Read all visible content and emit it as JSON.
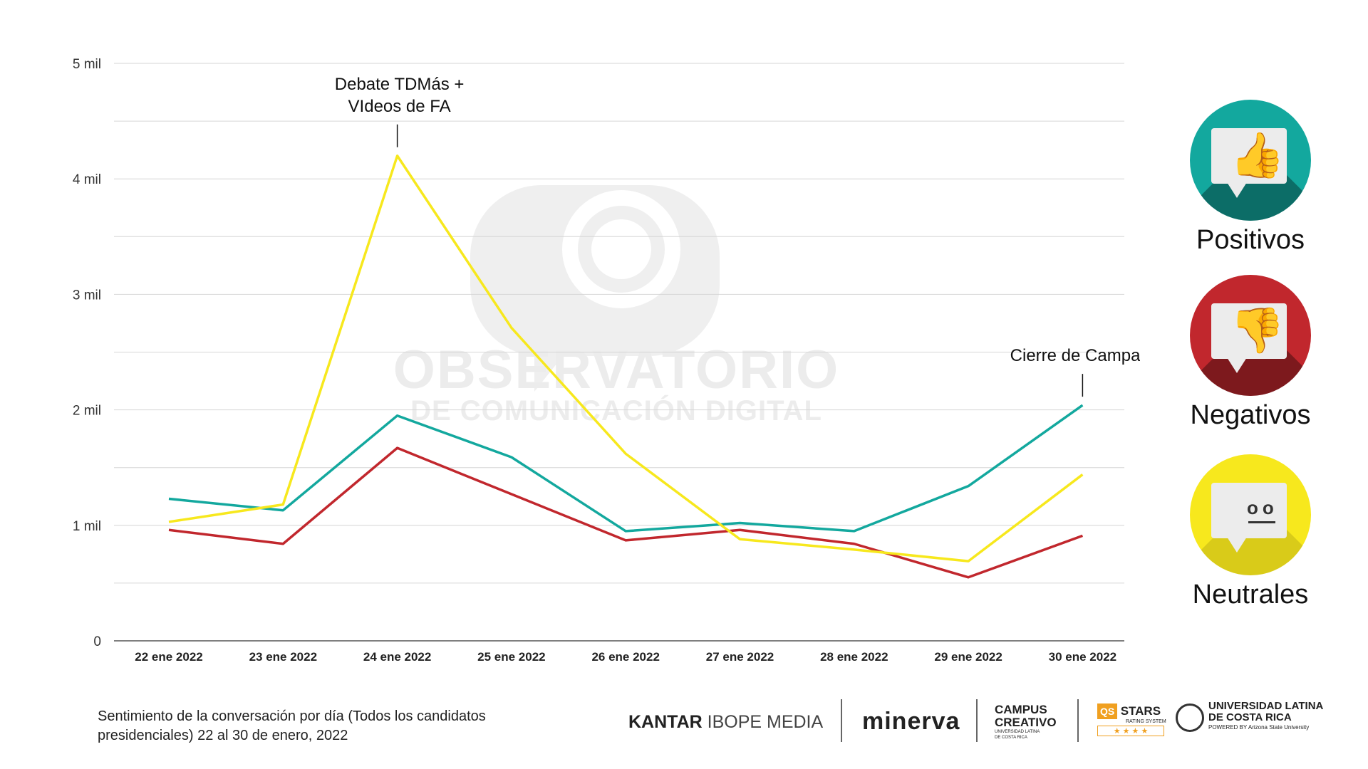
{
  "chart_data": {
    "type": "line",
    "categories": [
      "22 ene 2022",
      "23 ene 2022",
      "24 ene 2022",
      "25 ene 2022",
      "26 ene 2022",
      "27 ene 2022",
      "28 ene 2022",
      "29 ene 2022",
      "30 ene 2022"
    ],
    "series": [
      {
        "name": "Positivos",
        "color": "#13a89e",
        "values": [
          1230,
          1130,
          1950,
          1590,
          950,
          1020,
          950,
          1340,
          2040
        ]
      },
      {
        "name": "Negativos",
        "color": "#c1272d",
        "values": [
          960,
          840,
          1670,
          1270,
          870,
          960,
          840,
          550,
          910
        ]
      },
      {
        "name": "Neutrales",
        "color": "#f7e81d",
        "values": [
          1030,
          1180,
          4200,
          2710,
          1620,
          880,
          790,
          690,
          1440
        ]
      }
    ],
    "y_ticks": [
      {
        "value": 0,
        "label": "0"
      },
      {
        "value": 1000,
        "label": "1 mil"
      },
      {
        "value": 2000,
        "label": "2 mil"
      },
      {
        "value": 3000,
        "label": "3 mil"
      },
      {
        "value": 4000,
        "label": "4 mil"
      },
      {
        "value": 5000,
        "label": "5 mil"
      }
    ],
    "ylim": [
      0,
      5000
    ],
    "grid": true,
    "annotations": [
      {
        "category_index": 2,
        "lines": [
          "Debate TDMás +",
          "VIdeos de FA"
        ]
      },
      {
        "category_index": 8,
        "lines": [
          "Cierre de Campaña"
        ]
      }
    ]
  },
  "watermark": {
    "line1": "OBSERVATORIO",
    "line2": "DE COMUNICACIÓN DIGITAL"
  },
  "legend": [
    {
      "label": "Positivos",
      "color": "#13a89e",
      "icon": "thumbs-up-icon"
    },
    {
      "label": "Negativos",
      "color": "#c1272d",
      "icon": "thumbs-down-icon"
    },
    {
      "label": "Neutrales",
      "color": "#f7e81d",
      "icon": "neutral-face-icon"
    }
  ],
  "caption": "Sentimiento de la conversación por día (Todos los candidatos presidenciales) 22 al 30 de enero, 2022",
  "footer_logos": {
    "kantar_bold": "KANTAR",
    "kantar_rest": "IBOPE MEDIA",
    "minerva": "minerva",
    "campus_line1": "CAMPUS",
    "campus_line2": "CREATIVO",
    "campus_sub": "UNIVERSIDAD LATINA DE COSTA RICA",
    "qs_badge": "QS",
    "stars": "STARS",
    "stars_sub": "RATING SYSTEM",
    "star_glyphs": "★ ★ ★ ★",
    "ulatina_line1": "UNIVERSIDAD LATINA",
    "ulatina_line2": "DE COSTA RICA",
    "ulatina_sub": "POWERED BY Arizona State University"
  }
}
